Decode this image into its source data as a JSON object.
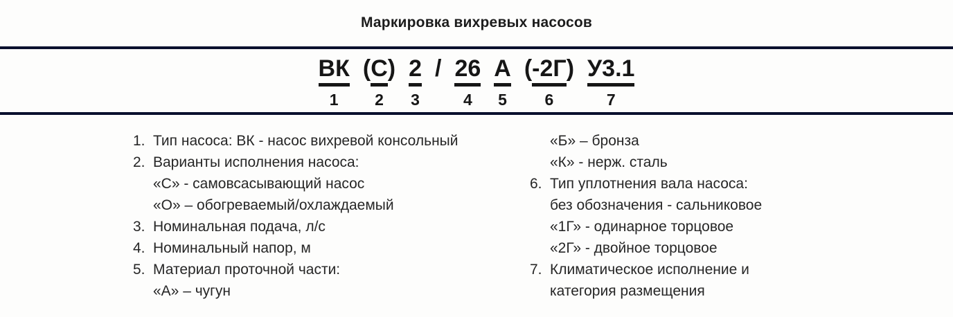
{
  "title": "Маркировка вихревых насосов",
  "colors": {
    "divider": "#0a102e",
    "text": "#262626",
    "formula_text": "#161616",
    "background": "#fdfdfc"
  },
  "formula": {
    "segments": [
      {
        "pre": "",
        "core": "ВК",
        "post": "",
        "num": "1",
        "underline": true
      },
      {
        "pre": "(",
        "core": "С",
        "post": ")",
        "num": "2",
        "underline": true
      },
      {
        "pre": "",
        "core": "2",
        "post": "",
        "num": "3",
        "underline": true
      },
      {
        "pre": "",
        "core": "/",
        "post": "",
        "num": "",
        "underline": false
      },
      {
        "pre": "",
        "core": "26",
        "post": "",
        "num": "4",
        "underline": true
      },
      {
        "pre": "",
        "core": "А",
        "post": "",
        "num": "5",
        "underline": true
      },
      {
        "pre": "(",
        "core": "-2Г",
        "post": ")",
        "num": "6",
        "underline": true
      },
      {
        "pre": "",
        "core": "У3.1",
        "post": "",
        "num": "7",
        "underline": true
      }
    ]
  },
  "legend": {
    "left_column": [
      {
        "num": "1.",
        "text": "Тип насоса: ВК - насос вихревой консольный"
      },
      {
        "num": "2.",
        "text": "Варианты исполнения насоса:"
      },
      {
        "num": "",
        "text": "«С» - самовсасывающий насос"
      },
      {
        "num": "",
        "text": "«О» – обогреваемый/охлаждаемый"
      },
      {
        "num": "3.",
        "text": "Номинальная подача, л/с"
      },
      {
        "num": "4.",
        "text": "Номинальный напор, м"
      },
      {
        "num": "5.",
        "text": "Материал проточной части:"
      },
      {
        "num": "",
        "text": "«А» – чугун"
      }
    ],
    "right_column": [
      {
        "num": "",
        "text": "«Б» – бронза"
      },
      {
        "num": "",
        "text": "«К» - нерж. сталь"
      },
      {
        "num": "6.",
        "text": "Тип уплотнения вала насоса:"
      },
      {
        "num": "",
        "text": "без обозначения - сальниковое"
      },
      {
        "num": "",
        "text": "«1Г» - одинарное торцовое"
      },
      {
        "num": "",
        "text": "«2Г» - двойное торцовое"
      },
      {
        "num": "7.",
        "text": "Климатическое исполнение и"
      },
      {
        "num": "",
        "text": "категория размещения"
      }
    ]
  }
}
